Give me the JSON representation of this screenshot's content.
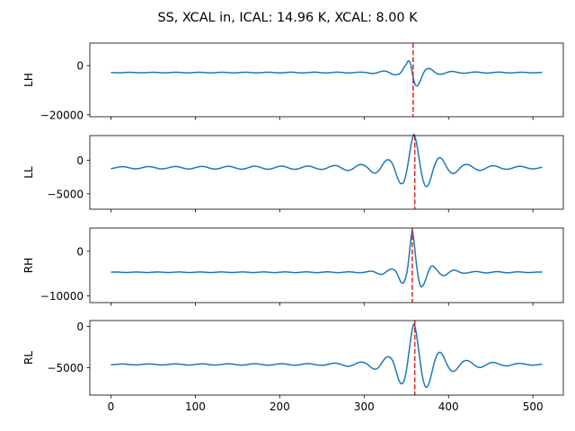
{
  "figure": {
    "title": "SS, XCAL in, ICAL: 14.96 K, XCAL: 8.00 K"
  },
  "colors": {
    "series": "#1f77b4",
    "marker": "#d62728"
  },
  "chart_data": [
    {
      "type": "line",
      "ylabel": "LH",
      "xlim": [
        -25,
        536
      ],
      "ylim": [
        -20800,
        9200
      ],
      "yticks": [
        0,
        -20000
      ],
      "ytick_labels": [
        "0",
        "−20000"
      ],
      "xticks": [
        0,
        100,
        200,
        300,
        400,
        500
      ],
      "xtick_labels": [],
      "baseline": -2800,
      "peak_x": 357,
      "marker_x": 358,
      "wave": {
        "amp": 8200,
        "freq": 0.23,
        "phase": 1.571,
        "growth": 0.07,
        "decay": 0.09,
        "edge_pos": 0.05,
        "edge_neg": 0.05
      },
      "envelope_pts": [
        [
          0,
          0.01
        ],
        [
          300,
          0.02
        ],
        [
          340,
          0.12
        ],
        [
          350,
          0.4
        ],
        [
          355,
          0.95
        ],
        [
          357,
          1.0
        ],
        [
          360,
          0.85
        ],
        [
          365,
          0.55
        ],
        [
          375,
          0.22
        ],
        [
          390,
          0.08
        ],
        [
          420,
          0.03
        ],
        [
          511,
          0.01
        ]
      ],
      "n_samples": 512
    },
    {
      "type": "line",
      "ylabel": "LL",
      "xlim": [
        -25,
        536
      ],
      "ylim": [
        -7300,
        3700
      ],
      "yticks": [
        0,
        -5000
      ],
      "ytick_labels": [
        "0",
        "−5000"
      ],
      "xticks": [
        0,
        100,
        200,
        300,
        400,
        500
      ],
      "xtick_labels": [],
      "baseline": -1100,
      "peak_x": 359,
      "marker_x": 360,
      "wave": {
        "amp": 5000,
        "freq": 0.2,
        "phase": 0.0,
        "growth": 0.04,
        "decay": 0.045,
        "edge_pos": 0.05,
        "edge_neg": 0.05
      },
      "envelope_pts": [
        [
          0,
          0.03
        ],
        [
          250,
          0.05
        ],
        [
          300,
          0.1
        ],
        [
          330,
          0.25
        ],
        [
          345,
          0.5
        ],
        [
          359,
          1.0
        ],
        [
          370,
          0.65
        ],
        [
          385,
          0.35
        ],
        [
          400,
          0.2
        ],
        [
          420,
          0.1
        ],
        [
          460,
          0.05
        ],
        [
          511,
          0.03
        ]
      ],
      "n_samples": 512
    },
    {
      "type": "line",
      "ylabel": "RH",
      "xlim": [
        -25,
        536
      ],
      "ylim": [
        -11500,
        5200
      ],
      "yticks": [
        0,
        -10000
      ],
      "ytick_labels": [
        "0",
        "−10000"
      ],
      "xticks": [
        0,
        100,
        200,
        300,
        400,
        500
      ],
      "xtick_labels": [],
      "baseline": -4700,
      "peak_x": 357,
      "marker_x": 357,
      "wave": {
        "amp": 9500,
        "freq": 0.25,
        "phase": 0.0,
        "growth": 0.08,
        "decay": 0.1,
        "edge_pos": 0.05,
        "edge_neg": 0.05
      },
      "envelope_pts": [
        [
          0,
          0.005
        ],
        [
          300,
          0.01
        ],
        [
          335,
          0.08
        ],
        [
          350,
          0.35
        ],
        [
          357,
          1.0
        ],
        [
          362,
          0.6
        ],
        [
          370,
          0.3
        ],
        [
          385,
          0.1
        ],
        [
          420,
          0.02
        ],
        [
          511,
          0.005
        ]
      ],
      "n_samples": 512
    },
    {
      "type": "line",
      "ylabel": "RL",
      "xlim": [
        -25,
        536
      ],
      "ylim": [
        -8300,
        700
      ],
      "yticks": [
        0,
        -5000
      ],
      "ytick_labels": [
        "0",
        "−5000"
      ],
      "xticks": [
        0,
        100,
        200,
        300,
        400,
        500
      ],
      "xtick_labels": [
        "0",
        "100",
        "200",
        "300",
        "400",
        "500"
      ],
      "baseline": -4600,
      "peak_x": 359,
      "marker_x": 360,
      "wave": {
        "amp": 4900,
        "freq": 0.2,
        "phase": 0.0,
        "growth": 0.04,
        "decay": 0.045,
        "edge_pos": 0.05,
        "edge_neg": 0.05
      },
      "envelope_pts": [
        [
          0,
          0.01
        ],
        [
          250,
          0.02
        ],
        [
          300,
          0.06
        ],
        [
          330,
          0.2
        ],
        [
          345,
          0.5
        ],
        [
          359,
          1.0
        ],
        [
          370,
          0.65
        ],
        [
          385,
          0.35
        ],
        [
          400,
          0.2
        ],
        [
          420,
          0.1
        ],
        [
          460,
          0.04
        ],
        [
          511,
          0.01
        ]
      ],
      "n_samples": 512
    }
  ]
}
